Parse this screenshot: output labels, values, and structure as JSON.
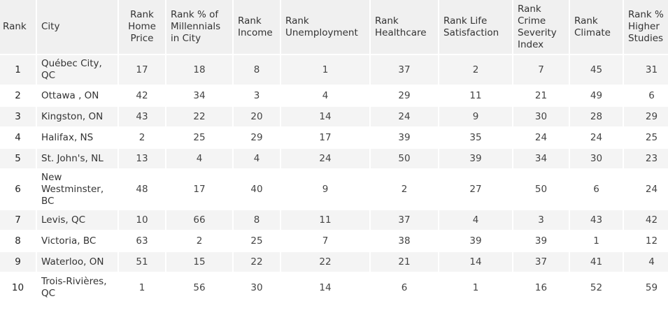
{
  "table": {
    "headers": [
      "Rank",
      "City",
      "Rank Home Price",
      "Rank % of Millennials in City",
      "Rank Income",
      "Rank Unemployment",
      "Rank Healthcare",
      "Rank Life Satisfaction",
      "Rank Crime Severity Index",
      "Rank Climate",
      "Rank % Higher Studies"
    ],
    "rows": [
      [
        "1",
        "Québec City, QC",
        "17",
        "18",
        "8",
        "1",
        "37",
        "2",
        "7",
        "45",
        "31"
      ],
      [
        "2",
        "Ottawa , ON",
        "42",
        "34",
        "3",
        "4",
        "29",
        "11",
        "21",
        "49",
        "6"
      ],
      [
        "3",
        "Kingston, ON",
        "43",
        "22",
        "20",
        "14",
        "24",
        "9",
        "30",
        "28",
        "29"
      ],
      [
        "4",
        "Halifax, NS",
        "2",
        "25",
        "29",
        "17",
        "39",
        "35",
        "24",
        "24",
        "25"
      ],
      [
        "5",
        "St. John's, NL",
        "13",
        "4",
        "4",
        "24",
        "50",
        "39",
        "34",
        "30",
        "23"
      ],
      [
        "6",
        "New Westminster, BC",
        "48",
        "17",
        "40",
        "9",
        "2",
        "27",
        "50",
        "6",
        "24"
      ],
      [
        "7",
        "Levis, QC",
        "10",
        "66",
        "8",
        "11",
        "37",
        "4",
        "3",
        "43",
        "42"
      ],
      [
        "8",
        "Victoria, BC",
        "63",
        "2",
        "25",
        "7",
        "38",
        "39",
        "39",
        "1",
        "12"
      ],
      [
        "9",
        "Waterloo, ON",
        "51",
        "15",
        "22",
        "22",
        "21",
        "14",
        "37",
        "41",
        "4"
      ],
      [
        "10",
        "Trois-Rivières, QC",
        "1",
        "56",
        "30",
        "14",
        "6",
        "1",
        "16",
        "52",
        "59"
      ]
    ]
  }
}
